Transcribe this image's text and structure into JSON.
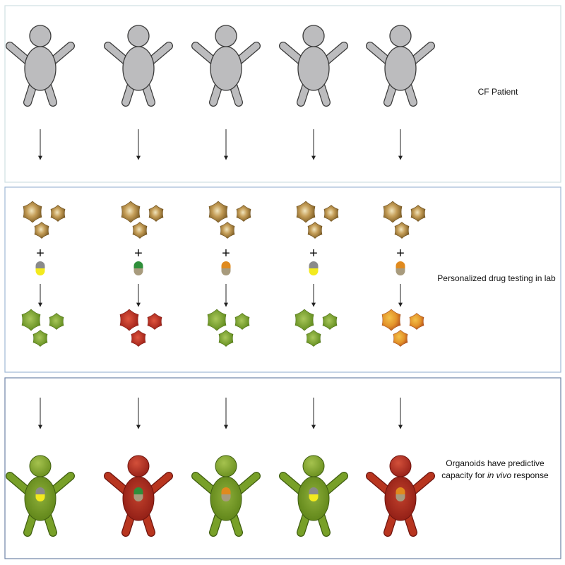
{
  "panels": [
    {
      "label": "CF Patient"
    },
    {
      "label": "Personalized drug testing in lab"
    },
    {
      "label_pre": "Organoids have predictive",
      "label_mid": "capacity for ",
      "label_em": "in vivo",
      "label_post": " response"
    }
  ],
  "plus_sign": "+",
  "colors": {
    "panel_border_top": "#cfe0e2",
    "panel_border_mid": "#9fb8d6",
    "panel_border_bot": "#6f84a6",
    "patient_gray": "#bcbcbe",
    "organoid_untreated": "#a0792e",
    "responder_green": "#79a324",
    "non_responder_red": "#b3261e",
    "partial_orange": "#d9891f"
  },
  "columns": [
    {
      "drug_top": "gray",
      "drug_bottom": "yellow",
      "outcome": "green"
    },
    {
      "drug_top": "green",
      "drug_bottom": "tan",
      "outcome": "red"
    },
    {
      "drug_top": "orange",
      "drug_bottom": "tan",
      "outcome": "green"
    },
    {
      "drug_top": "gray",
      "drug_bottom": "yellow",
      "outcome": "green"
    },
    {
      "drug_top": "orange",
      "drug_bottom": "tan",
      "outcome": "orange"
    }
  ]
}
